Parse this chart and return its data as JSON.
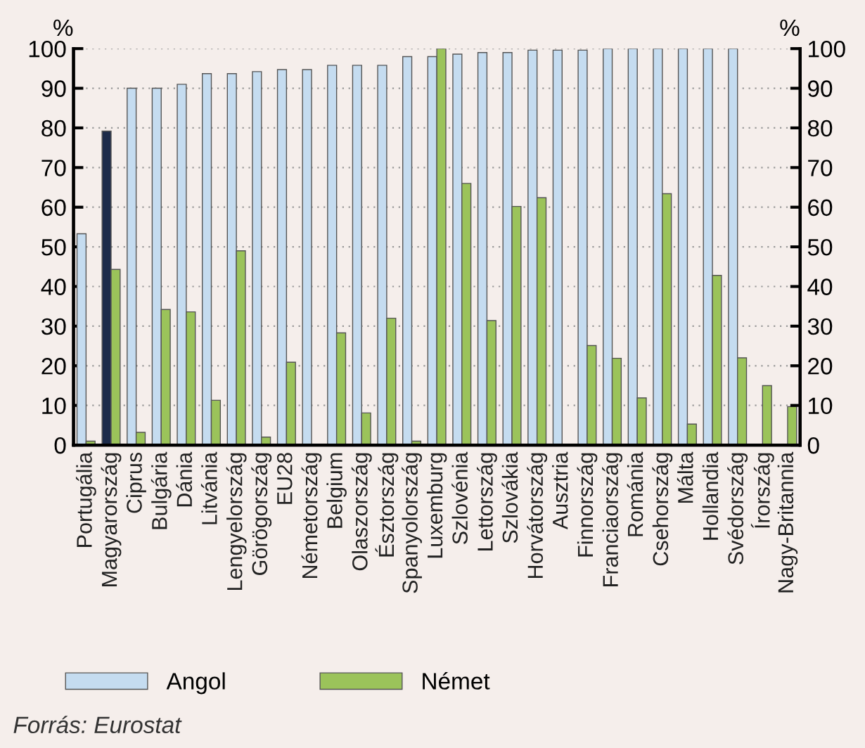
{
  "chart_data": {
    "type": "bar",
    "ylabel": "%",
    "y2label": "%",
    "categories": [
      "Portugália",
      "Magyarország",
      "Ciprus",
      "Bulgária",
      "Dánia",
      "Litvánia",
      "Lengyelország",
      "Görögország",
      "EU28",
      "Németország",
      "Belgium",
      "Olaszország",
      "Észtország",
      "Spanyolország",
      "Luxemburg",
      "Szlovénia",
      "Lettország",
      "Szlovákia",
      "Horvátország",
      "Ausztria",
      "Finnország",
      "Franciaország",
      "Románia",
      "Csehország",
      "Málta",
      "Hollandia",
      "Svédország",
      "Írország",
      "Nagy-Britannia"
    ],
    "series": [
      {
        "name": "Angol",
        "color": "#c5dcf0",
        "colors": [
          "#c5dcf0",
          "#1c2b4a",
          "#c5dcf0",
          "#c5dcf0",
          "#c5dcf0",
          "#c5dcf0",
          "#c5dcf0",
          "#c5dcf0",
          "#c5dcf0",
          "#c5dcf0",
          "#c5dcf0",
          "#c5dcf0",
          "#c5dcf0",
          "#c5dcf0",
          "#c5dcf0",
          "#c5dcf0",
          "#c5dcf0",
          "#c5dcf0",
          "#c5dcf0",
          "#c5dcf0",
          "#c5dcf0",
          "#c5dcf0",
          "#c5dcf0",
          "#c5dcf0",
          "#c5dcf0",
          "#c5dcf0",
          "#c5dcf0",
          "#c5dcf0",
          "#c5dcf0"
        ],
        "values": [
          53.3,
          79.2,
          90,
          90,
          91,
          93.7,
          93.7,
          94.2,
          94.7,
          94.7,
          95.8,
          95.8,
          95.8,
          98,
          98,
          98.6,
          99,
          99,
          99.6,
          99.6,
          99.6,
          100,
          100,
          100,
          100,
          100,
          100,
          null,
          null
        ]
      },
      {
        "name": "Német",
        "color": "#9bc35a",
        "values": [
          1,
          44.3,
          3.2,
          34.2,
          33.6,
          11.3,
          49,
          2,
          20.9,
          null,
          28.3,
          8.1,
          32,
          1,
          100,
          66,
          31.4,
          60.2,
          62.4,
          null,
          25.1,
          21.9,
          11.9,
          63.4,
          5.3,
          42.8,
          22,
          15,
          9.7
        ]
      }
    ],
    "ylim": [
      0,
      100
    ],
    "yticks": [
      0,
      10,
      20,
      30,
      40,
      50,
      60,
      70,
      80,
      90,
      100
    ],
    "y2lim": [
      0,
      100
    ],
    "y2ticks": [
      0,
      10,
      20,
      30,
      40,
      50,
      60,
      70,
      80,
      90,
      100
    ],
    "grid": "y",
    "legend": "bottom left",
    "annotations": [
      "Forrás: Eurostat"
    ]
  }
}
